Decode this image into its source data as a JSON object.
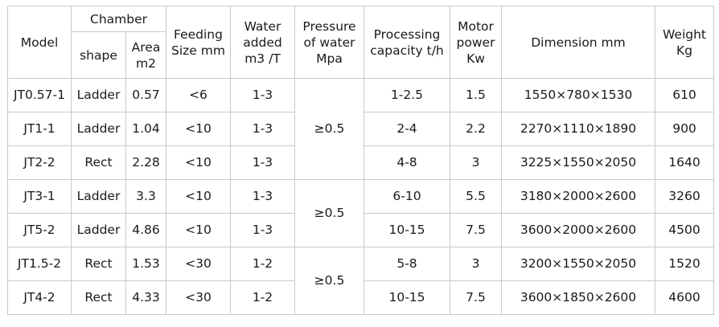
{
  "headers": {
    "model": "Model",
    "chamber": "Chamber",
    "shape": "shape",
    "area": "Area\nm2",
    "feeding": "Feeding\nSize mm",
    "water": "Water\nadded\nm3 /T",
    "pressure": "Pressure\nof water\nMpa",
    "capacity": "Processing\ncapacity t/h",
    "motor": "Motor\npower\nKw",
    "dimension": "Dimension mm",
    "weight": "Weight\nKg"
  },
  "rows": [
    {
      "model": "JT0.57-1",
      "shape": "Ladder",
      "area": "0.57",
      "feeding": "<6",
      "water": "1-3",
      "capacity": "1-2.5",
      "motor": "1.5",
      "dimension": "1550×780×1530",
      "weight": "610"
    },
    {
      "model": "JT1-1",
      "shape": "Ladder",
      "area": "1.04",
      "feeding": "<10",
      "water": "1-3",
      "capacity": "2-4",
      "motor": "2.2",
      "dimension": "2270×1110×1890",
      "weight": "900"
    },
    {
      "model": "JT2-2",
      "shape": "Rect",
      "area": "2.28",
      "feeding": "<10",
      "water": "1-3",
      "capacity": "4-8",
      "motor": "3",
      "dimension": "3225×1550×2050",
      "weight": "1640"
    },
    {
      "model": "JT3-1",
      "shape": "Ladder",
      "area": "3.3",
      "feeding": "<10",
      "water": "1-3",
      "capacity": "6-10",
      "motor": "5.5",
      "dimension": "3180×2000×2600",
      "weight": "3260"
    },
    {
      "model": "JT5-2",
      "shape": "Ladder",
      "area": "4.86",
      "feeding": "<10",
      "water": "1-3",
      "capacity": "10-15",
      "motor": "7.5",
      "dimension": "3600×2000×2600",
      "weight": "4500"
    },
    {
      "model": "JT1.5-2",
      "shape": "Rect",
      "area": "1.53",
      "feeding": "<30",
      "water": "1-2",
      "capacity": "5-8",
      "motor": "3",
      "dimension": "3200×1550×2050",
      "weight": "1520"
    },
    {
      "model": "JT4-2",
      "shape": "Rect",
      "area": "4.33",
      "feeding": "<30",
      "water": "1-2",
      "capacity": "10-15",
      "motor": "7.5",
      "dimension": "3600×1850×2600",
      "weight": "4600"
    }
  ],
  "pressure_groups": [
    "≥0.5",
    "≥0.5",
    "≥0.5"
  ]
}
